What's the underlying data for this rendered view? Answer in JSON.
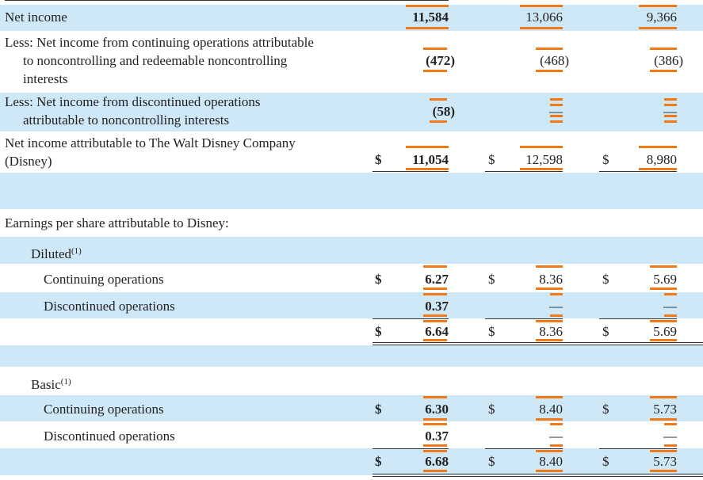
{
  "rows": {
    "net_income": {
      "label": "Net income",
      "v2021": "11,584",
      "v2020": "13,066",
      "v2019": "9,366"
    },
    "less_cont": {
      "label_1": "Less: Net income from continuing operations attributable",
      "label_2": "to noncontrolling and redeemable noncontrolling",
      "label_3": "interests",
      "v2021": "(472)",
      "v2020": "(468)",
      "v2019": "(386)"
    },
    "less_disc": {
      "label_1": "Less: Net income from discontinued operations",
      "label_2": "attributable to noncontrolling interests",
      "v2021": "(58)",
      "v2020": "—",
      "v2019": "—"
    },
    "attrib": {
      "label_1": "Net income attributable to The Walt Disney Company",
      "label_2": "(Disney)",
      "currency": "$",
      "v2021": "11,054",
      "v2020": "12,598",
      "v2019": "8,980"
    },
    "eps_header": {
      "label": "Earnings per share attributable to Disney:"
    },
    "diluted": {
      "label": "Diluted",
      "footnote": "(1)",
      "continuing": {
        "label": "Continuing operations",
        "currency": "$",
        "v2021": "6.27",
        "v2020": "8.36",
        "v2019": "5.69"
      },
      "discontinued": {
        "label": "Discontinued operations",
        "v2021": "0.37",
        "v2020": "—",
        "v2019": "—"
      },
      "total": {
        "currency": "$",
        "v2021": "6.64",
        "v2020": "8.36",
        "v2019": "5.69"
      }
    },
    "basic": {
      "label": "Basic",
      "footnote": "(1)",
      "continuing": {
        "label": "Continuing operations",
        "currency": "$",
        "v2021": "6.30",
        "v2020": "8.40",
        "v2019": "5.73"
      },
      "discontinued": {
        "label": "Discontinued operations",
        "v2021": "0.37",
        "v2020": "—",
        "v2019": "—"
      },
      "total": {
        "currency": "$",
        "v2021": "6.68",
        "v2020": "8.40",
        "v2019": "5.73"
      }
    }
  },
  "colors": {
    "row_highlight": "#cfe8f7",
    "value_marker": "#f07a1a"
  }
}
